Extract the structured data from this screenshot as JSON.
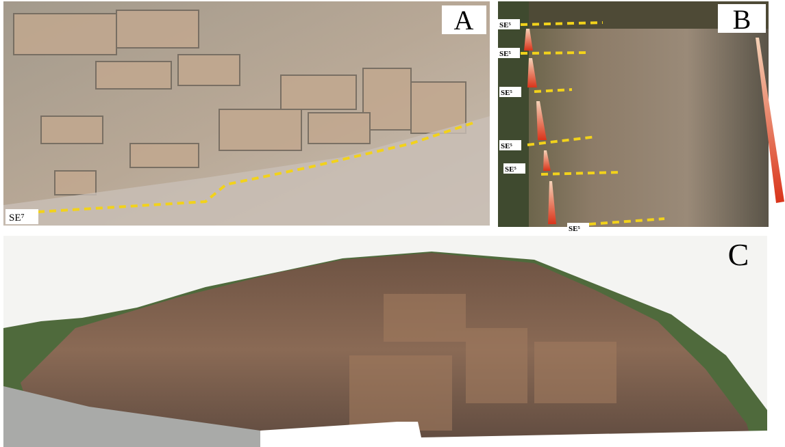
{
  "panels": [
    {
      "label": "A",
      "annotations": [
        "SE⁷"
      ]
    },
    {
      "label": "B",
      "annotations": [
        "SE⁵",
        "SE⁵",
        "SE⁵",
        "SE⁵",
        "SE⁵",
        "SE⁵"
      ]
    },
    {
      "label": "C"
    }
  ]
}
